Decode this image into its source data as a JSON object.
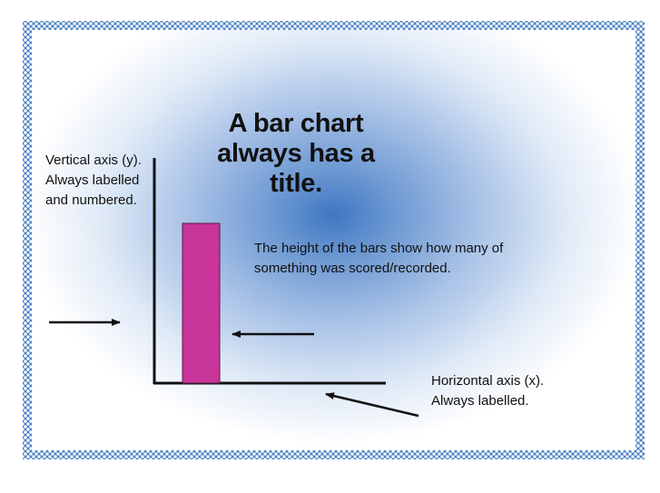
{
  "title": "A bar chart always has a title.",
  "annotations": {
    "vertical_axis": "Vertical axis (y). Always labelled and numbered.",
    "bar_height": "The height of the bars show how many of something was scored/recorded.",
    "horizontal_axis": "Horizontal axis (x). Always labelled."
  },
  "colors": {
    "bar": "#c9349a",
    "frame": "#4a7fc4",
    "center_glow": "#3f77c2"
  }
}
